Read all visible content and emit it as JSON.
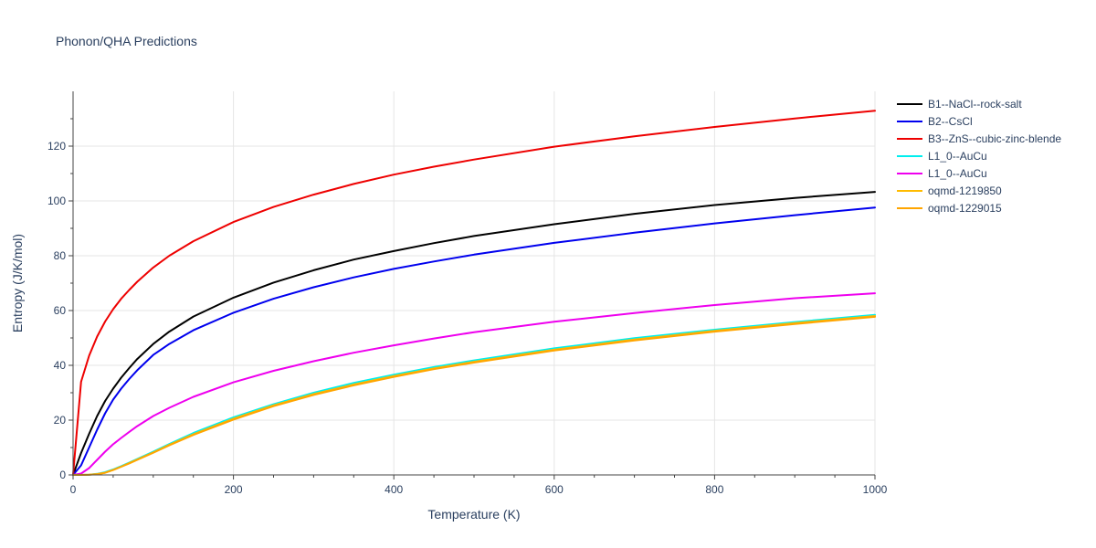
{
  "chart_data": {
    "type": "line",
    "title": "Phonon/QHA Predictions",
    "xlabel": "Temperature (K)",
    "ylabel": "Entropy (J/K/mol)",
    "xlim": [
      0,
      1000
    ],
    "ylim": [
      0,
      140
    ],
    "xticks": [
      0,
      200,
      400,
      600,
      800,
      1000
    ],
    "yticks": [
      0,
      20,
      40,
      60,
      80,
      100,
      120
    ],
    "grid": true,
    "legend_position": "top-right outside",
    "x": [
      0,
      10,
      20,
      30,
      40,
      50,
      60,
      70,
      80,
      100,
      120,
      150,
      200,
      250,
      300,
      350,
      400,
      450,
      500,
      600,
      700,
      800,
      900,
      1000
    ],
    "series": [
      {
        "name": "B1--NaCl--rock-salt",
        "color": "#000000",
        "values": [
          0,
          8,
          15,
          21.5,
          27,
          31.5,
          35.5,
          39,
          42.3,
          47.8,
          52.3,
          57.8,
          64.7,
          70.2,
          74.7,
          78.6,
          81.7,
          84.6,
          87.2,
          91.5,
          95.3,
          98.5,
          101.1,
          103.3
        ]
      },
      {
        "name": "B2--CsCl",
        "color": "#0000ee",
        "values": [
          0,
          3.5,
          10,
          16.5,
          22.5,
          27.5,
          31.5,
          35,
          38.2,
          43.8,
          47.8,
          52.8,
          59.2,
          64.3,
          68.5,
          72.1,
          75.2,
          77.9,
          80.4,
          84.7,
          88.4,
          91.8,
          94.8,
          97.6
        ]
      },
      {
        "name": "B3--ZnS--cubic-zinc-blende",
        "color": "#ee0000",
        "values": [
          0,
          34,
          43.5,
          50.5,
          56,
          60.5,
          64.3,
          67.5,
          70.5,
          75.7,
          80,
          85.3,
          92.3,
          97.8,
          102.3,
          106.2,
          109.6,
          112.5,
          115.1,
          119.8,
          123.6,
          127,
          130.1,
          132.9
        ]
      },
      {
        "name": "L1_0--AuCu",
        "color": "#00eeee",
        "values": [
          0,
          0,
          0.1,
          0.4,
          1,
          2,
          3.2,
          4.5,
          5.8,
          8.5,
          11.3,
          15.3,
          21,
          25.8,
          30,
          33.6,
          36.6,
          39.4,
          41.8,
          46.2,
          49.9,
          53,
          55.8,
          58.4
        ]
      },
      {
        "name": "L1_0--AuCu",
        "color": "#ee00ee",
        "values": [
          0,
          0.5,
          2.5,
          5.5,
          8.5,
          11.2,
          13.5,
          15.7,
          17.8,
          21.5,
          24.5,
          28.5,
          33.8,
          38,
          41.5,
          44.6,
          47.3,
          49.8,
          52.1,
          55.9,
          59.1,
          62,
          64.5,
          66.3
        ]
      },
      {
        "name": "oqmd-1219850",
        "color": "#ffbb00",
        "values": [
          0,
          0,
          0.1,
          0.3,
          0.8,
          1.8,
          3,
          4.3,
          5.6,
          8.2,
          11,
          14.8,
          20.5,
          25.4,
          29.5,
          33,
          36.1,
          38.9,
          41.3,
          45.7,
          49.4,
          52.6,
          55.4,
          58
        ]
      },
      {
        "name": "oqmd-1229015",
        "color": "#ffa500",
        "values": [
          0,
          0,
          0.1,
          0.3,
          0.8,
          1.8,
          3,
          4.2,
          5.5,
          8.1,
          10.8,
          14.6,
          20.2,
          25.1,
          29.2,
          32.7,
          35.8,
          38.6,
          41,
          45.4,
          49.1,
          52.3,
          55.1,
          57.7
        ]
      }
    ]
  }
}
